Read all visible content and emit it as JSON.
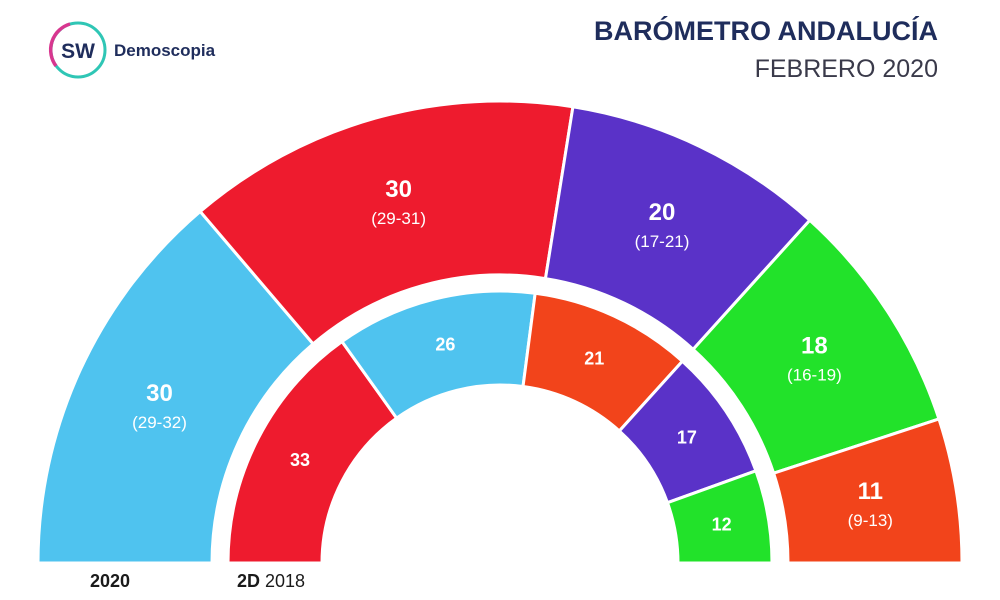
{
  "brand": {
    "logo_initials": "SW",
    "logo_name": "Demoscopia"
  },
  "header": {
    "title": "BARÓMETRO ANDALUCÍA",
    "subtitle": "FEBRERO 2020"
  },
  "colors": {
    "title": "#1f2d5c",
    "subtitle": "#3a3a4a",
    "logo_ring_pink": "#d8368f",
    "logo_ring_teal": "#2fc6b5",
    "background": "#ffffff"
  },
  "chart_data": [
    {
      "type": "pie",
      "label": "2020",
      "series": [
        {
          "value": 30,
          "range": "(29-32)",
          "color": "#4fc3ef"
        },
        {
          "value": 30,
          "range": "(29-31)",
          "color": "#ee1b2e"
        },
        {
          "value": 20,
          "range": "(17-21)",
          "color": "#5a32c8"
        },
        {
          "value": 18,
          "range": "(16-19)",
          "color": "#22e22a"
        },
        {
          "value": 11,
          "range": "(9-13)",
          "color": "#f2441b"
        }
      ]
    },
    {
      "type": "pie",
      "label_bold": "2D",
      "label_rest": "2018",
      "series": [
        {
          "value": 33,
          "color": "#ee1b2e"
        },
        {
          "value": 26,
          "color": "#4fc3ef"
        },
        {
          "value": 21,
          "color": "#f2441b"
        },
        {
          "value": 17,
          "color": "#5a32c8"
        },
        {
          "value": 12,
          "color": "#22e22a"
        }
      ]
    }
  ]
}
